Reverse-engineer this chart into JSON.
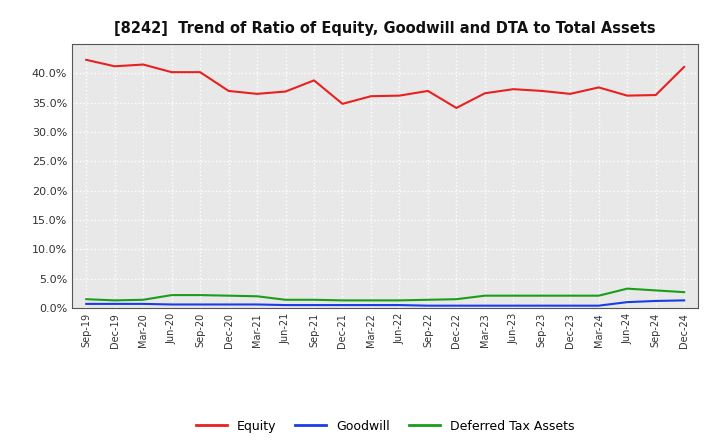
{
  "title": "[8242]  Trend of Ratio of Equity, Goodwill and DTA to Total Assets",
  "x_labels": [
    "Sep-19",
    "Dec-19",
    "Mar-20",
    "Jun-20",
    "Sep-20",
    "Dec-20",
    "Mar-21",
    "Jun-21",
    "Sep-21",
    "Dec-21",
    "Mar-22",
    "Jun-22",
    "Sep-22",
    "Dec-22",
    "Mar-23",
    "Jun-23",
    "Sep-23",
    "Dec-23",
    "Mar-24",
    "Jun-24",
    "Sep-24",
    "Dec-24"
  ],
  "equity": [
    0.423,
    0.412,
    0.415,
    0.402,
    0.402,
    0.37,
    0.365,
    0.369,
    0.388,
    0.348,
    0.361,
    0.362,
    0.37,
    0.341,
    0.366,
    0.373,
    0.37,
    0.365,
    0.376,
    0.362,
    0.363,
    0.411
  ],
  "goodwill": [
    0.007,
    0.007,
    0.007,
    0.006,
    0.006,
    0.006,
    0.006,
    0.005,
    0.005,
    0.005,
    0.005,
    0.005,
    0.004,
    0.004,
    0.004,
    0.004,
    0.004,
    0.004,
    0.004,
    0.01,
    0.012,
    0.013
  ],
  "dta": [
    0.015,
    0.013,
    0.014,
    0.022,
    0.022,
    0.021,
    0.02,
    0.014,
    0.014,
    0.013,
    0.013,
    0.013,
    0.014,
    0.015,
    0.021,
    0.021,
    0.021,
    0.021,
    0.021,
    0.033,
    0.03,
    0.027
  ],
  "equity_color": "#e82020",
  "goodwill_color": "#1a3de8",
  "dta_color": "#1a9e1a",
  "ylim": [
    0.0,
    0.45
  ],
  "yticks": [
    0.0,
    0.05,
    0.1,
    0.15,
    0.2,
    0.25,
    0.3,
    0.35,
    0.4
  ],
  "background_color": "#ffffff",
  "plot_bg_color": "#e8e8e8",
  "grid_color": "#ffffff",
  "legend_labels": [
    "Equity",
    "Goodwill",
    "Deferred Tax Assets"
  ]
}
